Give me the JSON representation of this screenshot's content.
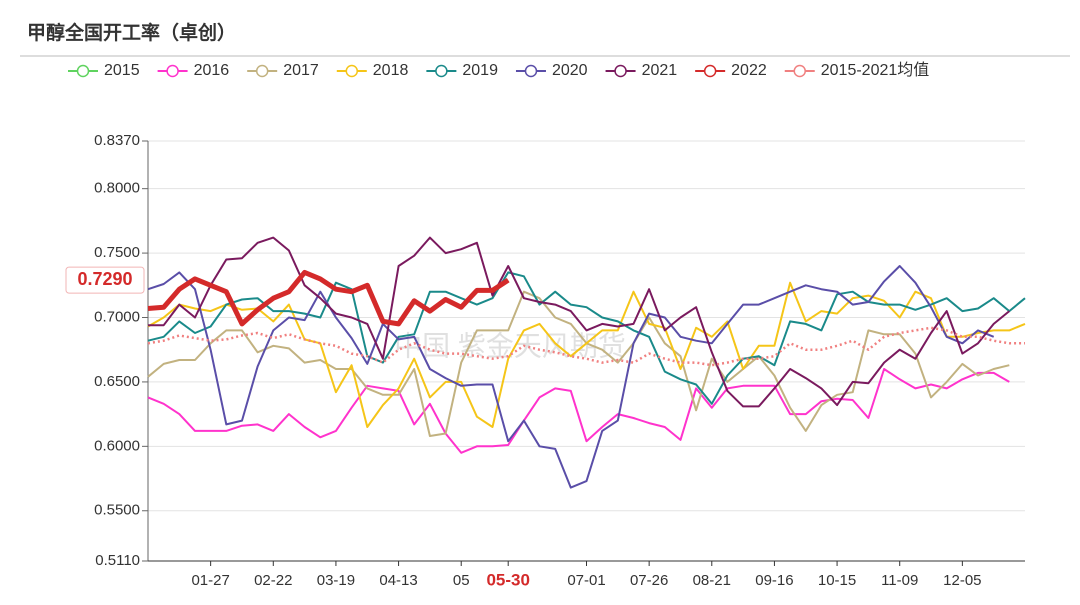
{
  "chart_data": {
    "type": "line",
    "title": "甲醇全国开工率（卓创）",
    "watermark": "中国 紫金天风期货",
    "categories": [
      null,
      null,
      null,
      null,
      "01-27",
      null,
      null,
      null,
      "02-22",
      null,
      null,
      null,
      "03-19",
      null,
      null,
      null,
      "04-13",
      null,
      null,
      null,
      "05",
      null,
      null,
      "05-30",
      null,
      null,
      null,
      null,
      "07-01",
      null,
      null,
      null,
      "07-26",
      null,
      null,
      null,
      "08-21",
      null,
      null,
      null,
      "09-16",
      null,
      null,
      null,
      "10-15",
      null,
      null,
      null,
      "11-09",
      null,
      null,
      null,
      "12-05",
      null,
      null,
      null,
      null
    ],
    "ylim": [
      0.511,
      0.837
    ],
    "yticks": [
      {
        "value": 0.511,
        "label": "0.5110"
      },
      {
        "value": 0.55,
        "label": "0.5500"
      },
      {
        "value": 0.6,
        "label": "0.6000"
      },
      {
        "value": 0.65,
        "label": "0.6500"
      },
      {
        "value": 0.7,
        "label": "0.7000"
      },
      {
        "value": 0.75,
        "label": "0.7500"
      },
      {
        "value": 0.8,
        "label": "0.8000"
      },
      {
        "value": 0.837,
        "label": "0.8370"
      }
    ],
    "grid": true,
    "axis_pointer": {
      "x_index": 23,
      "y": {
        "value": 0.729,
        "label": "0.7290"
      },
      "color": "#d42a2a"
    },
    "series": [
      {
        "name": "2015",
        "color": "#5fd35f",
        "values": [
          null,
          null,
          null,
          null,
          null,
          null,
          null,
          null,
          null,
          null,
          null,
          null,
          null,
          null,
          null,
          null,
          null,
          null,
          null,
          null,
          null,
          null,
          null,
          null,
          null,
          null,
          null,
          null,
          null,
          null,
          null,
          null,
          null,
          null,
          null,
          null,
          null,
          null,
          null,
          null,
          null,
          null,
          null,
          null,
          null,
          null,
          null,
          null,
          null,
          null,
          null,
          null,
          null,
          null,
          null,
          null,
          null
        ]
      },
      {
        "name": "2016",
        "color": "#ff33cc",
        "values": [
          0.638,
          0.633,
          0.625,
          0.612,
          0.612,
          0.612,
          0.616,
          0.617,
          0.612,
          0.625,
          0.615,
          0.607,
          0.612,
          0.63,
          0.647,
          0.645,
          0.643,
          0.617,
          0.633,
          0.61,
          0.595,
          0.6,
          0.6,
          0.601,
          0.62,
          0.638,
          0.645,
          0.643,
          0.604,
          0.615,
          0.625,
          0.622,
          0.618,
          0.615,
          0.605,
          0.645,
          0.63,
          0.645,
          0.647,
          0.647,
          0.647,
          0.625,
          0.625,
          0.635,
          0.637,
          0.636,
          0.622,
          0.66,
          0.652,
          0.645,
          0.648,
          0.645,
          0.652,
          0.657,
          0.657,
          0.65,
          null
        ]
      },
      {
        "name": "2017",
        "color": "#c2b280",
        "values": [
          0.654,
          0.664,
          0.667,
          0.667,
          0.68,
          0.69,
          0.69,
          0.673,
          0.678,
          0.676,
          0.665,
          0.667,
          0.66,
          0.66,
          0.645,
          0.64,
          0.64,
          0.66,
          0.608,
          0.61,
          0.665,
          0.69,
          0.69,
          0.69,
          0.72,
          0.715,
          0.7,
          0.695,
          0.68,
          0.675,
          0.665,
          0.68,
          0.7,
          0.68,
          0.67,
          0.628,
          0.668,
          0.65,
          0.66,
          0.67,
          0.655,
          0.63,
          0.612,
          0.632,
          0.64,
          0.642,
          0.69,
          0.687,
          0.687,
          0.672,
          0.638,
          0.65,
          0.664,
          0.655,
          0.66,
          0.663,
          null
        ]
      },
      {
        "name": "2018",
        "color": "#f5c518",
        "values": [
          0.693,
          0.7,
          0.71,
          0.707,
          0.705,
          0.71,
          0.706,
          0.707,
          0.697,
          0.71,
          0.683,
          0.68,
          0.642,
          0.663,
          0.615,
          0.632,
          0.645,
          0.668,
          0.638,
          0.65,
          0.65,
          0.623,
          0.615,
          0.668,
          0.69,
          0.695,
          0.68,
          0.67,
          0.68,
          0.69,
          0.69,
          0.72,
          0.695,
          0.692,
          0.66,
          0.692,
          0.685,
          0.697,
          0.66,
          0.678,
          0.678,
          0.727,
          0.697,
          0.705,
          0.703,
          0.715,
          0.717,
          0.713,
          0.7,
          0.72,
          0.715,
          0.685,
          0.685,
          0.688,
          0.69,
          0.69,
          0.695
        ]
      },
      {
        "name": "2019",
        "color": "#1a8a8a",
        "values": [
          0.682,
          0.685,
          0.697,
          0.688,
          0.693,
          0.71,
          0.714,
          0.715,
          0.705,
          0.705,
          0.703,
          0.7,
          0.727,
          0.722,
          0.67,
          0.665,
          0.685,
          0.687,
          0.72,
          0.72,
          0.715,
          0.71,
          0.715,
          0.735,
          0.732,
          0.71,
          0.72,
          0.71,
          0.708,
          0.7,
          0.697,
          0.69,
          0.685,
          0.658,
          0.652,
          0.648,
          0.633,
          0.655,
          0.668,
          0.67,
          0.663,
          0.697,
          0.695,
          0.69,
          0.718,
          0.72,
          0.712,
          0.71,
          0.71,
          0.706,
          0.71,
          0.715,
          0.705,
          0.707,
          0.715,
          0.705,
          0.715
        ]
      },
      {
        "name": "2020",
        "color": "#5a4ea8",
        "values": [
          0.722,
          0.726,
          0.735,
          0.722,
          0.675,
          0.617,
          0.62,
          0.662,
          0.69,
          0.7,
          0.698,
          0.72,
          0.7,
          0.684,
          0.664,
          0.695,
          0.683,
          0.685,
          0.66,
          0.653,
          0.647,
          0.648,
          0.648,
          0.604,
          0.62,
          0.6,
          0.598,
          0.568,
          0.573,
          0.612,
          0.62,
          0.68,
          0.703,
          0.7,
          0.685,
          0.682,
          0.68,
          0.695,
          0.71,
          0.71,
          0.715,
          0.72,
          0.725,
          0.722,
          0.72,
          0.71,
          0.712,
          0.728,
          0.74,
          0.727,
          0.708,
          0.685,
          0.68,
          0.69,
          0.685,
          null,
          null
        ]
      },
      {
        "name": "2021",
        "color": "#7a1a5e",
        "values": [
          0.694,
          0.694,
          0.71,
          0.7,
          0.725,
          0.745,
          0.746,
          0.758,
          0.762,
          0.752,
          0.725,
          0.715,
          0.703,
          0.7,
          0.695,
          0.668,
          0.74,
          0.748,
          0.762,
          0.75,
          0.753,
          0.758,
          0.717,
          0.74,
          0.715,
          0.712,
          0.71,
          0.705,
          0.69,
          0.695,
          0.693,
          0.695,
          0.722,
          0.69,
          0.7,
          0.708,
          0.673,
          0.643,
          0.631,
          0.631,
          0.645,
          0.66,
          0.653,
          0.645,
          0.632,
          0.65,
          0.649,
          0.665,
          0.675,
          0.668,
          0.688,
          0.705,
          0.672,
          0.68,
          0.695,
          0.705,
          null
        ]
      },
      {
        "name": "2022",
        "color": "#d42a2a",
        "width": 5,
        "values": [
          0.707,
          0.708,
          0.722,
          0.73,
          0.725,
          0.72,
          0.695,
          0.706,
          0.715,
          0.72,
          0.735,
          0.73,
          0.722,
          0.72,
          0.725,
          0.697,
          0.695,
          0.713,
          0.705,
          0.714,
          0.708,
          0.721,
          0.721,
          0.729,
          null,
          null,
          null,
          null,
          null,
          null,
          null,
          null,
          null,
          null,
          null,
          null,
          null,
          null,
          null,
          null,
          null,
          null,
          null,
          null,
          null,
          null,
          null,
          null,
          null,
          null,
          null,
          null,
          null,
          null,
          null,
          null,
          null
        ]
      },
      {
        "name": "2015-2021均值",
        "color": "#f08080",
        "dashed": true,
        "values": [
          0.68,
          0.682,
          0.686,
          0.684,
          0.682,
          0.683,
          0.686,
          0.688,
          0.684,
          0.687,
          0.683,
          0.68,
          0.678,
          0.672,
          0.67,
          0.665,
          0.675,
          0.68,
          0.675,
          0.672,
          0.672,
          0.67,
          0.668,
          0.67,
          0.678,
          0.675,
          0.673,
          0.67,
          0.668,
          0.665,
          0.667,
          0.665,
          0.672,
          0.668,
          0.665,
          0.665,
          0.663,
          0.665,
          0.668,
          0.668,
          0.67,
          0.68,
          0.675,
          0.675,
          0.678,
          0.682,
          0.675,
          0.685,
          0.688,
          0.69,
          0.692,
          0.69,
          0.685,
          0.685,
          0.682,
          0.68,
          0.68
        ]
      }
    ]
  }
}
